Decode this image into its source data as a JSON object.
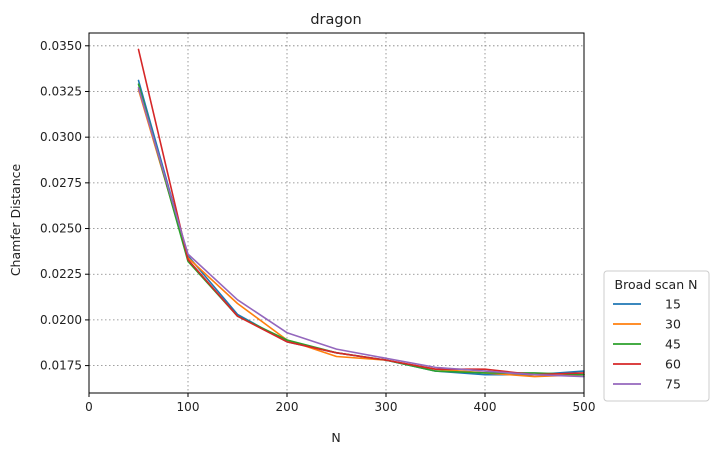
{
  "chart_data": {
    "type": "line",
    "title": "dragon",
    "xlabel": "N",
    "ylabel": "Chamfer Distance",
    "xlim": [
      0,
      500
    ],
    "ylim": [
      0.016,
      0.0357
    ],
    "xticks": [
      0,
      100,
      200,
      300,
      400,
      500
    ],
    "xtick_labels": [
      "0",
      "100",
      "200",
      "300",
      "400",
      "500"
    ],
    "yticks": [
      0.0175,
      0.02,
      0.0225,
      0.025,
      0.0275,
      0.03,
      0.0325,
      0.035
    ],
    "ytick_labels": [
      "0.0175",
      "0.0200",
      "0.0225",
      "0.0250",
      "0.0275",
      "0.0300",
      "0.0325",
      "0.0350"
    ],
    "grid": true,
    "legend": {
      "title": "Broad scan N",
      "placement": "outside-lower-right"
    },
    "x": [
      50,
      100,
      150,
      200,
      250,
      300,
      350,
      400,
      450,
      500
    ],
    "series": [
      {
        "name": "15",
        "color": "#1f77b4",
        "values": [
          0.0331,
          0.0235,
          0.0203,
          0.0188,
          0.0182,
          0.0178,
          0.0172,
          0.017,
          0.017,
          0.0172
        ]
      },
      {
        "name": "30",
        "color": "#ff7f0e",
        "values": [
          0.0326,
          0.0234,
          0.0209,
          0.0189,
          0.018,
          0.0178,
          0.0173,
          0.0171,
          0.0169,
          0.017
        ]
      },
      {
        "name": "45",
        "color": "#2ca02c",
        "values": [
          0.0329,
          0.0232,
          0.0202,
          0.0189,
          0.0182,
          0.0178,
          0.0172,
          0.0171,
          0.0171,
          0.017
        ]
      },
      {
        "name": "60",
        "color": "#d62728",
        "values": [
          0.0348,
          0.0233,
          0.0202,
          0.0188,
          0.0182,
          0.0178,
          0.0173,
          0.0173,
          0.017,
          0.0171
        ]
      },
      {
        "name": "75",
        "color": "#9467bd",
        "values": [
          0.0327,
          0.0236,
          0.0211,
          0.0193,
          0.0184,
          0.0179,
          0.0174,
          0.0172,
          0.017,
          0.0169
        ]
      }
    ]
  }
}
